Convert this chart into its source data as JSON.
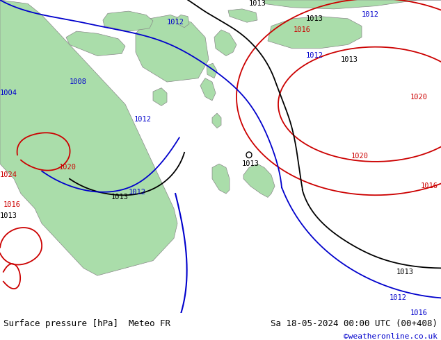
{
  "title_left": "Surface pressure [hPa]  Meteo FR",
  "title_right": "Sa 18-05-2024 00:00 UTC (00+408)",
  "credit": "©weatheronline.co.uk",
  "fig_width": 6.34,
  "fig_height": 4.9,
  "dpi": 100,
  "bg_color": "#d8d8d8",
  "land_color": "#aaddaa",
  "sea_color": "#d8d8d8",
  "isobar_colors": {
    "1008": "#0000ff",
    "1012": "#0000ff",
    "1013": "#000000",
    "1016": "#ff0000",
    "1020": "#ff0000",
    "1024": "#ff0000"
  },
  "bottom_text_color": "#000000",
  "credit_color": "#0000cc",
  "bottom_bar_color": "#e8e8e8"
}
